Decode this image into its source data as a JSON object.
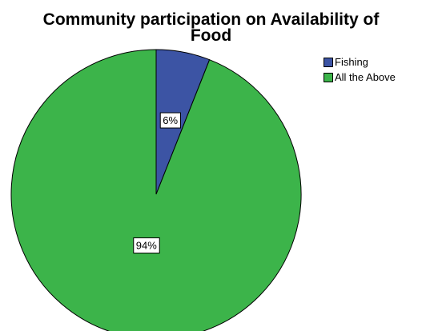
{
  "chart_data": {
    "type": "pie",
    "title_lines": [
      "Community participation on Availability of",
      "Food"
    ],
    "slices": [
      {
        "name": "Fishing",
        "value": 6,
        "label": "6%",
        "color": "#3c54a4"
      },
      {
        "name": "All the Above",
        "value": 94,
        "label": "94%",
        "color": "#3cb44a"
      }
    ],
    "legend_placement": "top-right",
    "start_angle_deg": 0,
    "direction": "clockwise"
  }
}
